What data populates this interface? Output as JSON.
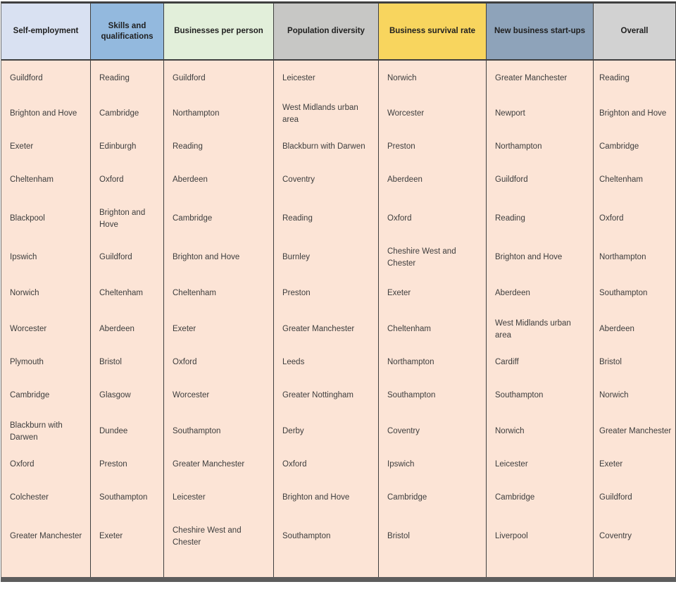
{
  "chart_data": {
    "type": "table",
    "body_color": "#fce4d6",
    "border_color": "#3f3f3f",
    "columns": [
      {
        "label": "Self-employment",
        "header_color": "#d9e1f2",
        "rank_list": [
          "Guildford",
          "Brighton and Hove",
          "Exeter",
          "Cheltenham",
          "Blackpool",
          "Ipswich",
          "Norwich",
          "Worcester",
          "Plymouth",
          "Cambridge",
          "Blackburn with Darwen",
          "Oxford",
          "Colchester",
          "Greater Manchester"
        ]
      },
      {
        "label": "Skills and qualifications",
        "header_color": "#93b9de",
        "rank_list": [
          "Reading",
          "Cambridge",
          "Edinburgh",
          "Oxford",
          "Brighton and Hove",
          "Guildford",
          "Cheltenham",
          "Aberdeen",
          "Bristol",
          "Glasgow",
          "Dundee",
          "Preston",
          "Southampton",
          "Exeter"
        ]
      },
      {
        "label": "Businesses per person",
        "header_color": "#e2efda",
        "rank_list": [
          "Guildford",
          "Northampton",
          "Reading",
          "Aberdeen",
          "Cambridge",
          "Brighton and Hove",
          "Cheltenham",
          "Exeter",
          "Oxford",
          "Worcester",
          "Southampton",
          "Greater Manchester",
          "Leicester",
          "Cheshire West and Chester"
        ]
      },
      {
        "label": "Population diversity",
        "header_color": "#c7c7c5",
        "rank_list": [
          "Leicester",
          "West Midlands urban area",
          "Blackburn with Darwen",
          "Coventry",
          "Reading",
          "Burnley",
          "Preston",
          "Greater Manchester",
          "Leeds",
          "Greater Nottingham",
          "Derby",
          "Oxford",
          "Brighton and Hove",
          "Southampton"
        ]
      },
      {
        "label": "Business survival rate",
        "header_color": "#f8d55e",
        "rank_list": [
          "Norwich",
          "Worcester",
          "Preston",
          "Aberdeen",
          "Oxford",
          "Cheshire West and Chester",
          "Exeter",
          "Cheltenham",
          "Northampton",
          "Southampton",
          "Coventry",
          "Ipswich",
          "Cambridge",
          "Bristol"
        ]
      },
      {
        "label": "New business start-ups",
        "header_color": "#8ea3ba",
        "rank_list": [
          "Greater Manchester",
          "Newport",
          "Northampton",
          "Guildford",
          "Reading",
          "Brighton and Hove",
          "Aberdeen",
          "West Midlands urban area",
          "Cardiff",
          "Southampton",
          "Norwich",
          "Leicester",
          "Cambridge",
          "Liverpool"
        ]
      },
      {
        "label": "Overall",
        "header_color": "#d2d2d2",
        "rank_list": [
          "Reading",
          "Brighton and Hove",
          "Cambridge",
          "Cheltenham",
          "Oxford",
          "Northampton",
          "Southampton",
          "Aberdeen",
          "Bristol",
          "Norwich",
          "Greater Manchester",
          "Exeter",
          "Guildford",
          "Coventry"
        ]
      }
    ],
    "layout": {
      "legend": "none",
      "grid": "vertical-only"
    }
  }
}
